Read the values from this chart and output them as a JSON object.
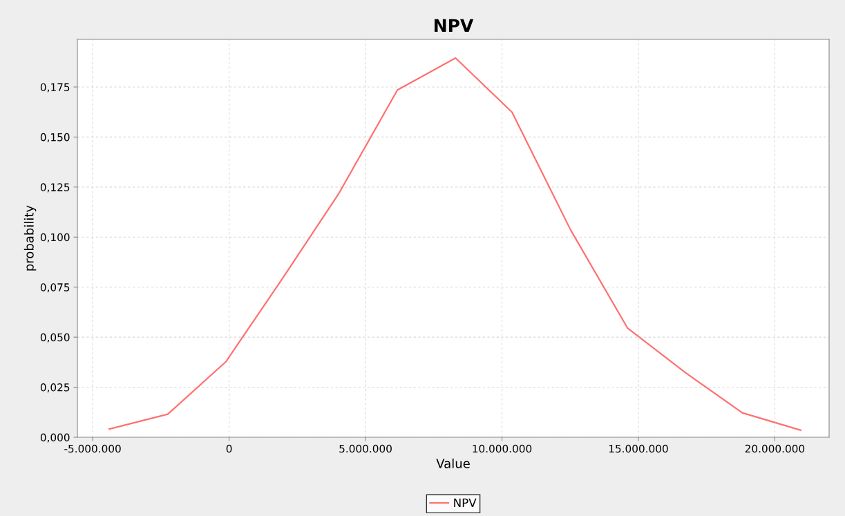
{
  "chart_data": {
    "type": "line",
    "title": "NPV",
    "xlabel": "Value",
    "ylabel": "probability",
    "x": [
      -4390000,
      -2250000,
      -120000,
      1940000,
      4030000,
      6170000,
      8300000,
      10370000,
      12520000,
      14600000,
      16730000,
      18810000,
      20950000
    ],
    "series": [
      {
        "name": "NPV",
        "color": "#ff7070",
        "values": [
          0.0041,
          0.0115,
          0.0377,
          0.079,
          0.122,
          0.1735,
          0.1895,
          0.1624,
          0.1035,
          0.0546,
          0.0322,
          0.0122,
          0.0035
        ]
      }
    ],
    "xlim": [
      -5560000,
      21990000
    ],
    "ylim": [
      0,
      0.1988
    ],
    "xticks": [
      {
        "value": -5000000,
        "label": "-5.000.000"
      },
      0,
      {
        "value": 5000000,
        "label": "5.000.000"
      },
      {
        "value": 10000000,
        "label": "10.000.000"
      },
      {
        "value": 15000000,
        "label": "15.000.000"
      },
      {
        "value": 20000000,
        "label": "20.000.000"
      }
    ],
    "yticks": [
      {
        "value": 0,
        "label": "0,000"
      },
      {
        "value": 0.025,
        "label": "0,025"
      },
      {
        "value": 0.05,
        "label": "0,050"
      },
      {
        "value": 0.075,
        "label": "0,075"
      },
      {
        "value": 0.1,
        "label": "0,100"
      },
      {
        "value": 0.125,
        "label": "0,125"
      },
      {
        "value": 0.15,
        "label": "0,150"
      },
      {
        "value": 0.175,
        "label": "0,175"
      }
    ],
    "grid": true,
    "legend": "bottom",
    "marker": "none",
    "line_style": "solid"
  }
}
